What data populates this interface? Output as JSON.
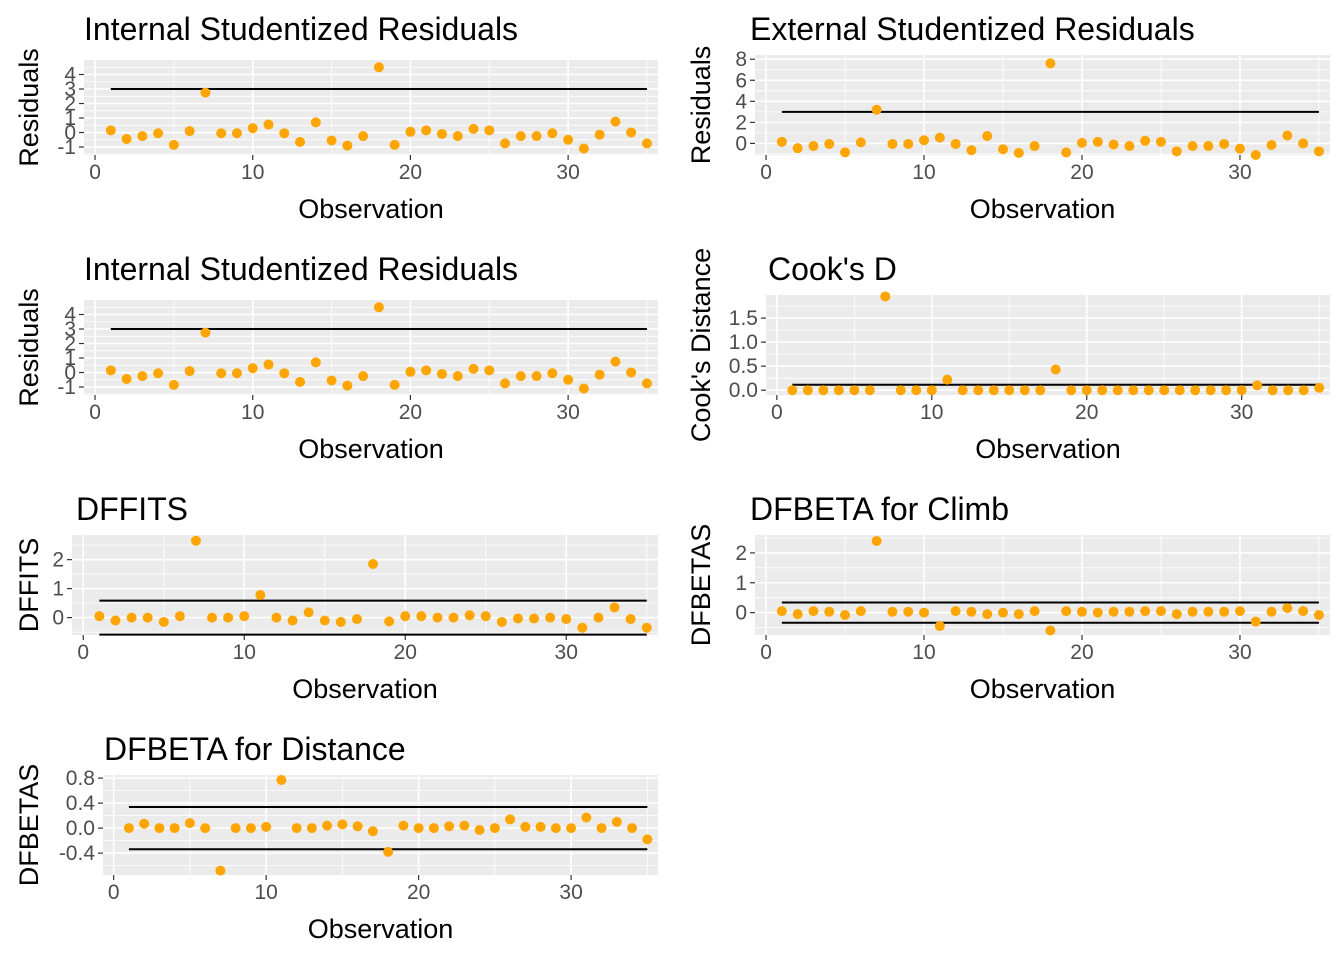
{
  "chart_data": [
    {
      "type": "scatter",
      "title": "Internal Studentized Residuals",
      "xlabel": "Observation",
      "ylabel": "Residuals",
      "xlim": [
        -0.7,
        35.7
      ],
      "ylim": [
        -1.55,
        5.0
      ],
      "xticks": [
        0,
        10,
        20,
        30
      ],
      "yticks": [
        -1,
        0,
        1,
        2,
        3,
        4
      ],
      "hlines": [
        3
      ],
      "hline_range": [
        1,
        35
      ],
      "grid": true,
      "color": "#FFA500",
      "x": [
        1,
        2,
        3,
        4,
        5,
        6,
        7,
        8,
        9,
        10,
        11,
        12,
        13,
        14,
        15,
        16,
        17,
        18,
        19,
        20,
        21,
        22,
        23,
        24,
        25,
        26,
        27,
        28,
        29,
        30,
        31,
        32,
        33,
        34,
        35
      ],
      "y": [
        0.15,
        -0.45,
        -0.25,
        -0.05,
        -0.85,
        0.1,
        2.75,
        -0.05,
        -0.05,
        0.3,
        0.55,
        -0.05,
        -0.65,
        0.7,
        -0.55,
        -0.9,
        -0.25,
        4.5,
        -0.85,
        0.05,
        0.15,
        -0.1,
        -0.25,
        0.25,
        0.15,
        -0.75,
        -0.25,
        -0.25,
        -0.05,
        -0.5,
        -1.1,
        -0.15,
        0.75,
        0.0,
        -0.75
      ]
    },
    {
      "type": "scatter",
      "title": "External Studentized Residuals",
      "xlabel": "Observation",
      "ylabel": "Residuals",
      "xlim": [
        -0.7,
        35.7
      ],
      "ylim": [
        -1.1,
        8.4
      ],
      "xticks": [
        0,
        10,
        20,
        30
      ],
      "yticks": [
        0,
        2,
        4,
        6,
        8
      ],
      "hlines": [
        3
      ],
      "hline_range": [
        1,
        35
      ],
      "grid": true,
      "color": "#FFA500",
      "x": [
        1,
        2,
        3,
        4,
        5,
        6,
        7,
        8,
        9,
        10,
        11,
        12,
        13,
        14,
        15,
        16,
        17,
        18,
        19,
        20,
        21,
        22,
        23,
        24,
        25,
        26,
        27,
        28,
        29,
        30,
        31,
        32,
        33,
        34,
        35
      ],
      "y": [
        0.15,
        -0.45,
        -0.25,
        -0.05,
        -0.85,
        0.1,
        3.2,
        -0.05,
        -0.05,
        0.3,
        0.55,
        -0.05,
        -0.65,
        0.7,
        -0.55,
        -0.9,
        -0.25,
        7.6,
        -0.85,
        0.05,
        0.15,
        -0.1,
        -0.25,
        0.25,
        0.15,
        -0.75,
        -0.25,
        -0.25,
        -0.05,
        -0.5,
        -1.1,
        -0.15,
        0.75,
        0.0,
        -0.75
      ]
    },
    {
      "type": "scatter",
      "title": "Internal Studentized Residuals",
      "xlabel": "Observation",
      "ylabel": "Residuals",
      "xlim": [
        -0.7,
        35.7
      ],
      "ylim": [
        -1.55,
        5.0
      ],
      "xticks": [
        0,
        10,
        20,
        30
      ],
      "yticks": [
        -1,
        0,
        1,
        2,
        3,
        4
      ],
      "hlines": [
        3
      ],
      "hline_range": [
        1,
        35
      ],
      "grid": true,
      "color": "#FFA500",
      "x": [
        1,
        2,
        3,
        4,
        5,
        6,
        7,
        8,
        9,
        10,
        11,
        12,
        13,
        14,
        15,
        16,
        17,
        18,
        19,
        20,
        21,
        22,
        23,
        24,
        25,
        26,
        27,
        28,
        29,
        30,
        31,
        32,
        33,
        34,
        35
      ],
      "y": [
        0.15,
        -0.45,
        -0.25,
        -0.05,
        -0.85,
        0.1,
        2.75,
        -0.05,
        -0.05,
        0.3,
        0.55,
        -0.05,
        -0.65,
        0.7,
        -0.55,
        -0.9,
        -0.25,
        4.5,
        -0.85,
        0.05,
        0.15,
        -0.1,
        -0.25,
        0.25,
        0.15,
        -0.75,
        -0.25,
        -0.25,
        -0.05,
        -0.5,
        -1.1,
        -0.15,
        0.75,
        0.0,
        -0.75
      ]
    },
    {
      "type": "scatter",
      "title": "Cook's D",
      "xlabel": "Observation",
      "ylabel": "Cook's Distance",
      "xlim": [
        -0.7,
        35.7
      ],
      "ylim": [
        -0.1,
        1.98
      ],
      "xticks": [
        0,
        10,
        20,
        30
      ],
      "yticks": [
        0.0,
        0.5,
        1.0,
        1.5
      ],
      "ytick_labels": [
        "0.0",
        "0.5",
        "1.0",
        "1.5"
      ],
      "hlines": [
        0.114
      ],
      "hline_range": [
        1,
        35
      ],
      "grid": true,
      "color": "#FFA500",
      "x": [
        1,
        2,
        3,
        4,
        5,
        6,
        7,
        8,
        9,
        10,
        11,
        12,
        13,
        14,
        15,
        16,
        17,
        18,
        19,
        20,
        21,
        22,
        23,
        24,
        25,
        26,
        27,
        28,
        29,
        30,
        31,
        32,
        33,
        34,
        35
      ],
      "y": [
        0.0,
        0.0,
        0.0,
        0.0,
        0.0,
        0.0,
        1.95,
        0.0,
        0.0,
        0.0,
        0.22,
        0.0,
        0.0,
        0.0,
        0.0,
        0.0,
        0.0,
        0.43,
        0.0,
        0.0,
        0.0,
        0.0,
        0.0,
        0.0,
        0.0,
        0.0,
        0.0,
        0.0,
        0.0,
        0.0,
        0.1,
        0.0,
        0.0,
        0.0,
        0.05
      ]
    },
    {
      "type": "scatter",
      "title": "DFFITS",
      "xlabel": "Observation",
      "ylabel": "DFFITS",
      "xlim": [
        -0.7,
        35.7
      ],
      "ylim": [
        -0.6,
        2.85
      ],
      "xticks": [
        0,
        10,
        20,
        30
      ],
      "yticks": [
        0,
        1,
        2
      ],
      "hlines": [
        0.586,
        -0.586
      ],
      "hline_range": [
        1,
        35
      ],
      "grid": true,
      "color": "#FFA500",
      "x": [
        1,
        2,
        3,
        4,
        5,
        6,
        7,
        8,
        9,
        10,
        11,
        12,
        13,
        14,
        15,
        16,
        17,
        18,
        19,
        20,
        21,
        22,
        23,
        24,
        25,
        26,
        27,
        28,
        29,
        30,
        31,
        32,
        33,
        34,
        35
      ],
      "y": [
        0.05,
        -0.1,
        0.0,
        0.0,
        -0.15,
        0.05,
        2.65,
        0.0,
        0.0,
        0.05,
        0.78,
        0.0,
        -0.1,
        0.18,
        -0.1,
        -0.15,
        -0.05,
        1.85,
        -0.13,
        0.05,
        0.05,
        0.0,
        0.0,
        0.08,
        0.05,
        -0.15,
        -0.03,
        -0.03,
        0.0,
        -0.05,
        -0.35,
        0.0,
        0.35,
        -0.05,
        -0.35
      ]
    },
    {
      "type": "scatter",
      "title": "DFBETA for Climb",
      "xlabel": "Observation",
      "ylabel": "DFBETAS",
      "xlim": [
        -0.7,
        35.7
      ],
      "ylim": [
        -0.75,
        2.6
      ],
      "xticks": [
        0,
        10,
        20,
        30
      ],
      "yticks": [
        0,
        1,
        2
      ],
      "hlines": [
        0.338,
        -0.338
      ],
      "hline_range": [
        1,
        35
      ],
      "grid": true,
      "color": "#FFA500",
      "x": [
        1,
        2,
        3,
        4,
        5,
        6,
        7,
        8,
        9,
        10,
        11,
        12,
        13,
        14,
        15,
        16,
        17,
        18,
        19,
        20,
        21,
        22,
        23,
        24,
        25,
        26,
        27,
        28,
        29,
        30,
        31,
        32,
        33,
        34,
        35
      ],
      "y": [
        0.05,
        -0.05,
        0.05,
        0.03,
        -0.08,
        0.05,
        2.4,
        0.03,
        0.03,
        0.0,
        -0.45,
        0.05,
        0.03,
        -0.05,
        0.0,
        -0.05,
        0.05,
        -0.6,
        0.05,
        0.03,
        0.0,
        0.03,
        0.03,
        0.05,
        0.05,
        -0.05,
        0.03,
        0.03,
        0.03,
        0.05,
        -0.3,
        0.03,
        0.15,
        0.05,
        -0.08
      ]
    },
    {
      "type": "scatter",
      "title": "DFBETA for Distance",
      "xlabel": "Observation",
      "ylabel": "DFBETAS",
      "xlim": [
        -0.7,
        35.7
      ],
      "ylim": [
        -0.75,
        0.85
      ],
      "xticks": [
        0,
        10,
        20,
        30
      ],
      "yticks": [
        -0.4,
        0.0,
        0.4,
        0.8
      ],
      "ytick_labels": [
        "-0.4",
        "0.0",
        "0.4",
        "0.8"
      ],
      "hlines": [
        0.338,
        -0.338
      ],
      "hline_range": [
        1,
        35
      ],
      "grid": true,
      "color": "#FFA500",
      "x": [
        1,
        2,
        3,
        4,
        5,
        6,
        7,
        8,
        9,
        10,
        11,
        12,
        13,
        14,
        15,
        16,
        17,
        18,
        19,
        20,
        21,
        22,
        23,
        24,
        25,
        26,
        27,
        28,
        29,
        30,
        31,
        32,
        33,
        34,
        35
      ],
      "y": [
        0.0,
        0.07,
        0.0,
        0.0,
        0.08,
        0.0,
        -0.68,
        0.0,
        0.0,
        0.02,
        0.77,
        0.0,
        0.0,
        0.04,
        0.06,
        0.03,
        -0.05,
        -0.38,
        0.04,
        0.0,
        0.0,
        0.03,
        0.04,
        -0.03,
        0.0,
        0.14,
        0.02,
        0.02,
        0.0,
        0.0,
        0.17,
        0.0,
        0.1,
        0.0,
        -0.18
      ]
    }
  ]
}
